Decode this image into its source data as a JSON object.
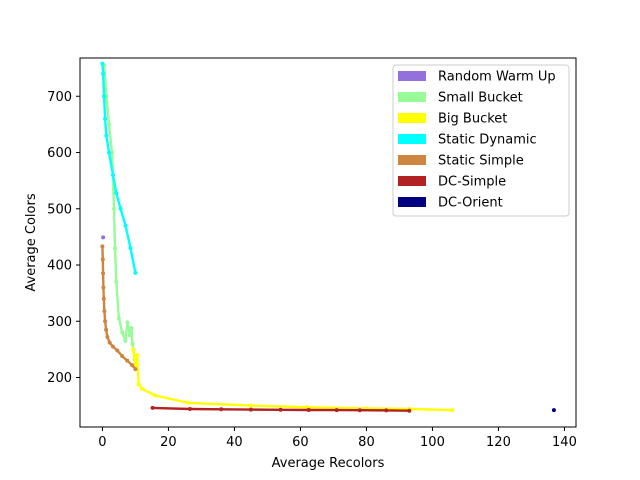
{
  "chart_data": {
    "type": "line",
    "title": "",
    "xlabel": "Average Recolors",
    "ylabel": "Average Colors",
    "xlim": [
      -6.8,
      143.5
    ],
    "ylim": [
      112,
      768
    ],
    "xticks": [
      0,
      20,
      40,
      60,
      80,
      100,
      120,
      140
    ],
    "yticks": [
      200,
      300,
      400,
      500,
      600,
      700
    ],
    "grid": false,
    "legend_position": "top-right",
    "series": [
      {
        "name": "Random Warm Up",
        "color": "#9370DB",
        "style": "points",
        "points": [
          [
            0.2,
            449
          ]
        ]
      },
      {
        "name": "Small Bucket",
        "color": "#98FB98",
        "style": "line",
        "points": [
          [
            0.5,
            755
          ],
          [
            1.2,
            700
          ],
          [
            2.0,
            650
          ],
          [
            2.9,
            600
          ],
          [
            3.5,
            500
          ],
          [
            3.8,
            430
          ],
          [
            4.2,
            370
          ],
          [
            5.0,
            305
          ],
          [
            6.0,
            280
          ],
          [
            7.0,
            265
          ],
          [
            7.6,
            298
          ],
          [
            8.3,
            275
          ],
          [
            8.8,
            288
          ],
          [
            9.1,
            260
          ],
          [
            9.4,
            250
          ],
          [
            9.7,
            232
          ]
        ]
      },
      {
        "name": "Big Bucket",
        "color": "#FFFF00",
        "style": "line",
        "points": [
          [
            9.3,
            250
          ],
          [
            10.0,
            222
          ],
          [
            10.5,
            240
          ],
          [
            11.0,
            188
          ],
          [
            12.0,
            180
          ],
          [
            16.0,
            168
          ],
          [
            26.0,
            155
          ],
          [
            45.0,
            150
          ],
          [
            62.0,
            147
          ],
          [
            80.0,
            145
          ],
          [
            93.0,
            144
          ],
          [
            106.0,
            142
          ]
        ]
      },
      {
        "name": "Static Dynamic",
        "color": "#00FFFF",
        "style": "line",
        "points": [
          [
            0.0,
            758
          ],
          [
            0.2,
            740
          ],
          [
            0.5,
            700
          ],
          [
            0.8,
            660
          ],
          [
            1.2,
            630
          ],
          [
            2.0,
            600
          ],
          [
            3.2,
            560
          ],
          [
            4.2,
            528
          ],
          [
            5.5,
            500
          ],
          [
            7.0,
            470
          ],
          [
            8.5,
            430
          ],
          [
            10.0,
            386
          ]
        ]
      },
      {
        "name": "Static Simple",
        "color": "#CD853F",
        "style": "line",
        "points": [
          [
            0.0,
            433
          ],
          [
            0.1,
            410
          ],
          [
            0.2,
            385
          ],
          [
            0.3,
            360
          ],
          [
            0.4,
            340
          ],
          [
            0.6,
            318
          ],
          [
            0.8,
            300
          ],
          [
            1.1,
            285
          ],
          [
            1.5,
            272
          ],
          [
            2.2,
            262
          ],
          [
            3.2,
            255
          ],
          [
            4.5,
            248
          ],
          [
            6.0,
            238
          ],
          [
            7.5,
            230
          ],
          [
            9.0,
            222
          ],
          [
            10.0,
            215
          ]
        ]
      },
      {
        "name": "DC-Simple",
        "color": "#B22222",
        "style": "line",
        "points": [
          [
            15.2,
            146
          ],
          [
            26.5,
            144
          ],
          [
            36.0,
            143.5
          ],
          [
            45.0,
            143
          ],
          [
            54.0,
            142.5
          ],
          [
            62.5,
            142.2
          ],
          [
            71.0,
            142
          ],
          [
            78.0,
            141.8
          ],
          [
            86.0,
            141.5
          ],
          [
            93.0,
            141
          ]
        ]
      },
      {
        "name": "DC-Orient",
        "color": "#000080",
        "style": "points",
        "points": [
          [
            136.8,
            142
          ]
        ]
      }
    ]
  }
}
